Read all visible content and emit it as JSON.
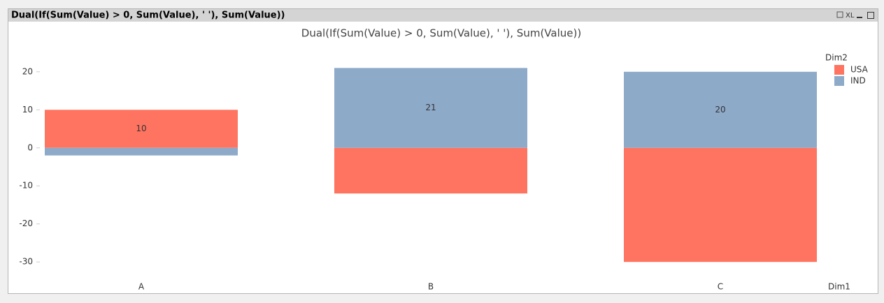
{
  "window": {
    "caption": "Dual(If(Sum(Value)  > 0, Sum(Value), ' '), Sum(Value))",
    "xl_icon": "XL"
  },
  "chart_data": {
    "type": "stacked_bar",
    "title": "Dual(If(Sum(Value) > 0, Sum(Value), ' '), Sum(Value))",
    "x_label": "Dim1",
    "legend_title": "Dim2",
    "legend_position": "top-right",
    "categories": [
      "A",
      "B",
      "C"
    ],
    "series": [
      {
        "name": "USA",
        "color": "#ff7461",
        "values": [
          10,
          -12,
          -30
        ],
        "value_labels": [
          "10",
          null,
          null
        ]
      },
      {
        "name": "IND",
        "color": "#8eaac9",
        "values": [
          -2,
          21,
          20
        ],
        "value_labels": [
          null,
          "21",
          "20"
        ]
      }
    ],
    "ylim": [
      -34,
      24
    ],
    "yticks": [
      -30,
      -20,
      -10,
      0,
      10,
      20
    ],
    "grid": false
  }
}
